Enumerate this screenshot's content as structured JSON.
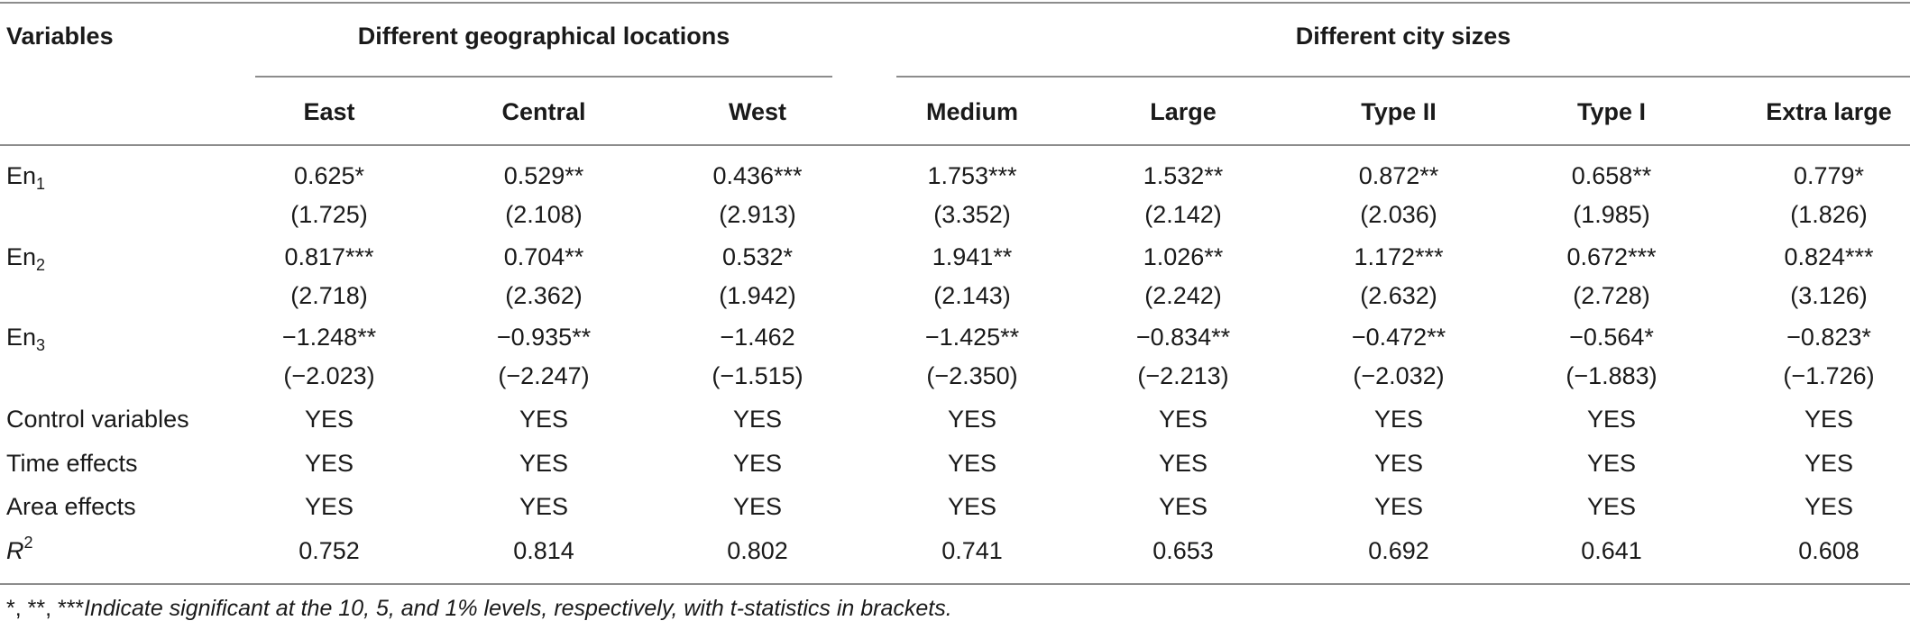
{
  "table": {
    "header": {
      "variables": "Variables",
      "group_geo": "Different geographical locations",
      "group_city": "Different city sizes",
      "columns": [
        "East",
        "Central",
        "West",
        "Medium",
        "Large",
        "Type II",
        "Type I",
        "Extra large"
      ]
    },
    "rows": [
      {
        "label_base": "En",
        "label_sub": "1",
        "coef": [
          "0.625*",
          "0.529**",
          "0.436***",
          "1.753***",
          "1.532**",
          "0.872**",
          "0.658**",
          "0.779*"
        ],
        "tstat": [
          "(1.725)",
          "(2.108)",
          "(2.913)",
          "(3.352)",
          "(2.142)",
          "(2.036)",
          "(1.985)",
          "(1.826)"
        ]
      },
      {
        "label_base": "En",
        "label_sub": "2",
        "coef": [
          "0.817***",
          "0.704**",
          "0.532*",
          "1.941**",
          "1.026**",
          "1.172***",
          "0.672***",
          "0.824***"
        ],
        "tstat": [
          "(2.718)",
          "(2.362)",
          "(1.942)",
          "(2.143)",
          "(2.242)",
          "(2.632)",
          "(2.728)",
          "(3.126)"
        ]
      },
      {
        "label_base": "En",
        "label_sub": "3",
        "coef": [
          "−1.248**",
          "−0.935**",
          "−1.462",
          "−1.425**",
          "−0.834**",
          "−0.472**",
          "−0.564*",
          "−0.823*"
        ],
        "tstat": [
          "(−2.023)",
          "(−2.247)",
          "(−1.515)",
          "(−2.350)",
          "(−2.213)",
          "(−2.032)",
          "(−1.883)",
          "(−1.726)"
        ]
      }
    ],
    "simple_rows": [
      {
        "label": "Control variables",
        "values": [
          "YES",
          "YES",
          "YES",
          "YES",
          "YES",
          "YES",
          "YES",
          "YES"
        ]
      },
      {
        "label": "Time effects",
        "values": [
          "YES",
          "YES",
          "YES",
          "YES",
          "YES",
          "YES",
          "YES",
          "YES"
        ]
      },
      {
        "label": "Area effects",
        "values": [
          "YES",
          "YES",
          "YES",
          "YES",
          "YES",
          "YES",
          "YES",
          "YES"
        ]
      }
    ],
    "r2": {
      "label_base": "R",
      "label_sup": "2",
      "values": [
        "0.752",
        "0.814",
        "0.802",
        "0.741",
        "0.653",
        "0.692",
        "0.641",
        "0.608"
      ]
    },
    "footnote": {
      "symbols": "*, **, ***",
      "text": "Indicate significant at the 10, 5, and 1% levels, respectively, with t-statistics in brackets."
    }
  }
}
